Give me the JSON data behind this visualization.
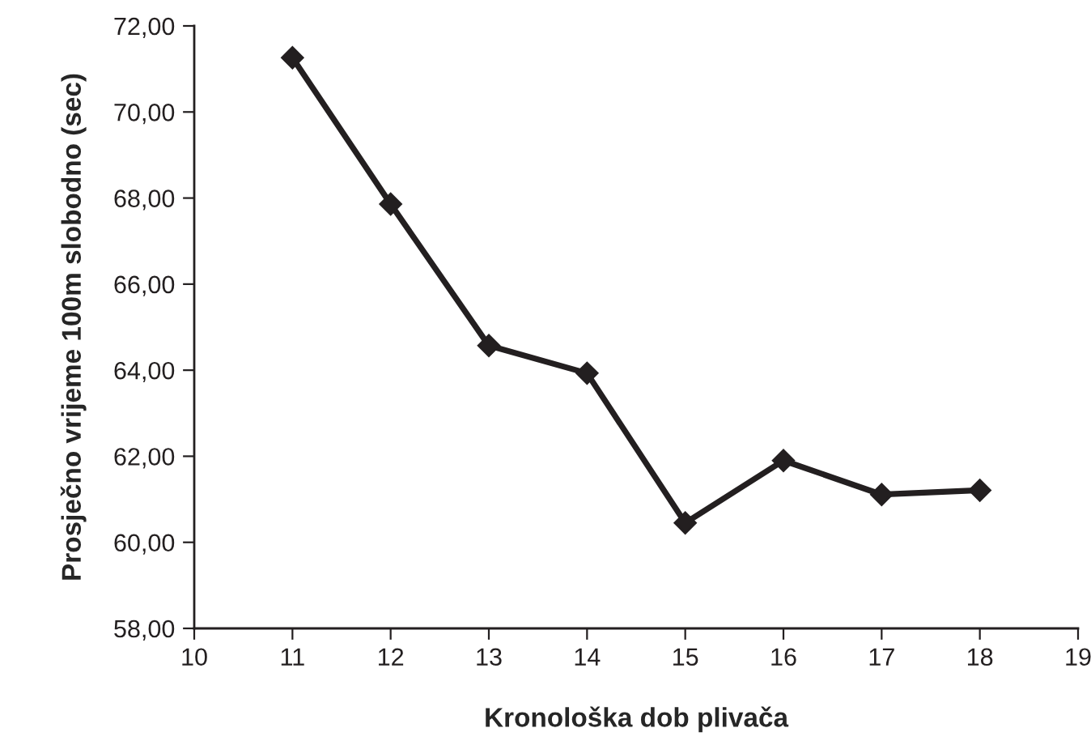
{
  "chart_data": {
    "type": "line",
    "xlabel": "Kronološka dob plivača",
    "ylabel": "Prosječno vrijeme 100m slobodno (sec)",
    "x": [
      11,
      12,
      13,
      14,
      15,
      16,
      17,
      18
    ],
    "series": [
      {
        "color": "#231f20",
        "values": [
          71.26,
          67.86,
          64.57,
          63.93,
          60.45,
          61.9,
          61.11,
          61.21
        ]
      }
    ],
    "xlim": [
      10,
      19
    ],
    "xticks": [
      10,
      11,
      12,
      13,
      14,
      15,
      16,
      17,
      18,
      19
    ],
    "ylim": [
      58,
      72
    ],
    "yticks": [
      {
        "value": 58,
        "label": "58,00"
      },
      {
        "value": 60,
        "label": "60,00"
      },
      {
        "value": 62,
        "label": "62,00"
      },
      {
        "value": 64,
        "label": "64,00"
      },
      {
        "value": 66,
        "label": "66,00"
      },
      {
        "value": 68,
        "label": "68,00"
      },
      {
        "value": 70,
        "label": "70,00"
      },
      {
        "value": 72,
        "label": "72,00"
      }
    ],
    "grid": false,
    "marker": "diamond",
    "line_style": "solid"
  }
}
